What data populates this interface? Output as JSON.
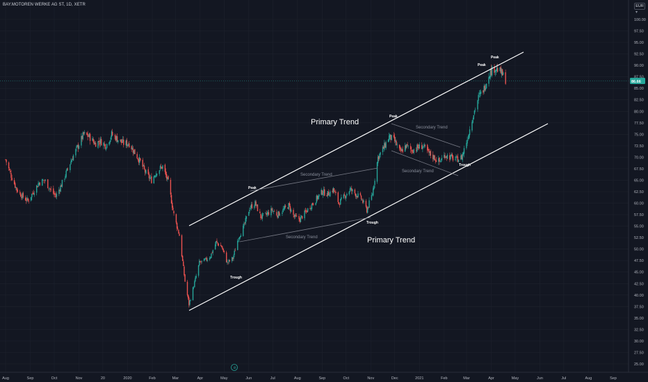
{
  "header": {
    "title": "BAY.MOTOREN WERKE AG ST, 1D, XETR",
    "currency": "EUR"
  },
  "chart_data": {
    "type": "candlestick",
    "ylim": [
      22.5,
      102.5
    ],
    "y_ticks": [
      "100.00",
      "97.50",
      "95.00",
      "92.50",
      "90.00",
      "87.50",
      "85.00",
      "82.50",
      "80.00",
      "77.50",
      "75.00",
      "72.50",
      "70.00",
      "67.50",
      "65.00",
      "62.50",
      "60.00",
      "57.50",
      "55.00",
      "52.50",
      "50.00",
      "47.50",
      "45.00",
      "42.50",
      "40.00",
      "37.50",
      "35.00",
      "32.50",
      "30.00",
      "27.50",
      "25.00"
    ],
    "x_ticks": [
      "Aug",
      "Sep",
      "Oct",
      "Nov",
      "20",
      "2020",
      "Feb",
      "Mar",
      "Apr",
      "May",
      "Jun",
      "Jul",
      "Aug",
      "Sep",
      "Oct",
      "Nov",
      "Dec",
      "2021",
      "Feb",
      "Mar",
      "Apr",
      "May",
      "Jun",
      "Jul",
      "Aug",
      "Sep"
    ],
    "last_price": "86.66",
    "colors": {
      "up": "#26a69a",
      "down": "#ef5350",
      "background": "#131722",
      "trendline": "#ffffff",
      "secondary_line": "#787b86"
    },
    "price_path": [
      [
        "2019-08-01",
        69.5
      ],
      [
        "2019-08-08",
        66.0
      ],
      [
        "2019-08-15",
        63.0
      ],
      [
        "2019-08-22",
        61.5
      ],
      [
        "2019-08-29",
        60.5
      ],
      [
        "2019-09-05",
        62.5
      ],
      [
        "2019-09-12",
        64.5
      ],
      [
        "2019-09-19",
        65.0
      ],
      [
        "2019-09-26",
        63.0
      ],
      [
        "2019-10-03",
        61.5
      ],
      [
        "2019-10-10",
        64.0
      ],
      [
        "2019-10-17",
        67.0
      ],
      [
        "2019-10-24",
        70.0
      ],
      [
        "2019-10-31",
        72.5
      ],
      [
        "2019-11-07",
        75.0
      ],
      [
        "2019-11-14",
        74.5
      ],
      [
        "2019-11-21",
        73.0
      ],
      [
        "2019-11-28",
        73.5
      ],
      [
        "2019-12-05",
        72.5
      ],
      [
        "2019-12-12",
        75.0
      ],
      [
        "2019-12-19",
        74.0
      ],
      [
        "2019-12-27",
        73.0
      ],
      [
        "2020-01-03",
        73.0
      ],
      [
        "2020-01-10",
        71.0
      ],
      [
        "2020-01-17",
        69.0
      ],
      [
        "2020-01-24",
        66.5
      ],
      [
        "2020-01-31",
        65.0
      ],
      [
        "2020-02-07",
        67.0
      ],
      [
        "2020-02-14",
        68.0
      ],
      [
        "2020-02-21",
        64.5
      ],
      [
        "2020-02-28",
        57.5
      ],
      [
        "2020-03-06",
        53.0
      ],
      [
        "2020-03-13",
        43.0
      ],
      [
        "2020-03-18",
        38.0
      ],
      [
        "2020-03-24",
        42.0
      ],
      [
        "2020-03-31",
        47.0
      ],
      [
        "2020-04-07",
        47.5
      ],
      [
        "2020-04-14",
        48.5
      ],
      [
        "2020-04-21",
        51.5
      ],
      [
        "2020-04-28",
        50.5
      ],
      [
        "2020-05-05",
        47.0
      ],
      [
        "2020-05-12",
        48.0
      ],
      [
        "2020-05-19",
        52.5
      ],
      [
        "2020-05-26",
        55.0
      ],
      [
        "2020-06-02",
        59.0
      ],
      [
        "2020-06-09",
        60.0
      ],
      [
        "2020-06-16",
        57.0
      ],
      [
        "2020-06-23",
        57.5
      ],
      [
        "2020-06-30",
        58.5
      ],
      [
        "2020-07-07",
        57.5
      ],
      [
        "2020-07-14",
        58.5
      ],
      [
        "2020-07-21",
        59.5
      ],
      [
        "2020-07-28",
        57.0
      ],
      [
        "2020-08-04",
        56.5
      ],
      [
        "2020-08-11",
        58.0
      ],
      [
        "2020-08-18",
        59.5
      ],
      [
        "2020-08-25",
        61.0
      ],
      [
        "2020-09-01",
        62.5
      ],
      [
        "2020-09-08",
        62.0
      ],
      [
        "2020-09-15",
        63.0
      ],
      [
        "2020-09-22",
        60.0
      ],
      [
        "2020-09-29",
        61.5
      ],
      [
        "2020-10-06",
        63.0
      ],
      [
        "2020-10-13",
        62.0
      ],
      [
        "2020-10-20",
        61.0
      ],
      [
        "2020-10-27",
        58.5
      ],
      [
        "2020-11-03",
        62.0
      ],
      [
        "2020-11-10",
        70.0
      ],
      [
        "2020-11-17",
        72.0
      ],
      [
        "2020-11-24",
        74.5
      ],
      [
        "2020-12-01",
        73.5
      ],
      [
        "2020-12-08",
        71.0
      ],
      [
        "2020-12-15",
        72.5
      ],
      [
        "2020-12-22",
        71.5
      ],
      [
        "2020-12-29",
        72.0
      ],
      [
        "2021-01-05",
        72.5
      ],
      [
        "2021-01-12",
        71.0
      ],
      [
        "2021-01-19",
        70.0
      ],
      [
        "2021-01-26",
        69.0
      ],
      [
        "2021-02-02",
        70.5
      ],
      [
        "2021-02-09",
        70.0
      ],
      [
        "2021-02-16",
        69.5
      ],
      [
        "2021-02-23",
        70.0
      ],
      [
        "2021-03-02",
        74.0
      ],
      [
        "2021-03-09",
        79.0
      ],
      [
        "2021-03-16",
        83.0
      ],
      [
        "2021-03-23",
        85.0
      ],
      [
        "2021-03-30",
        88.5
      ],
      [
        "2021-04-06",
        89.5
      ],
      [
        "2021-04-13",
        88.5
      ],
      [
        "2021-04-20",
        86.66
      ]
    ],
    "annotations": [
      {
        "label": "Primary Trend"
      },
      {
        "label": "Primary Trend"
      },
      {
        "label": "Secondary Trend"
      },
      {
        "label": "Secondary Trend"
      },
      {
        "label": "Secondary Trend"
      },
      {
        "label": "Secondary Trend"
      },
      {
        "label": "Peak"
      },
      {
        "label": "Peak"
      },
      {
        "label": "Peak"
      },
      {
        "label": "Peak"
      },
      {
        "label": "Trough"
      },
      {
        "label": "Trough"
      },
      {
        "label": "Trough"
      }
    ]
  }
}
